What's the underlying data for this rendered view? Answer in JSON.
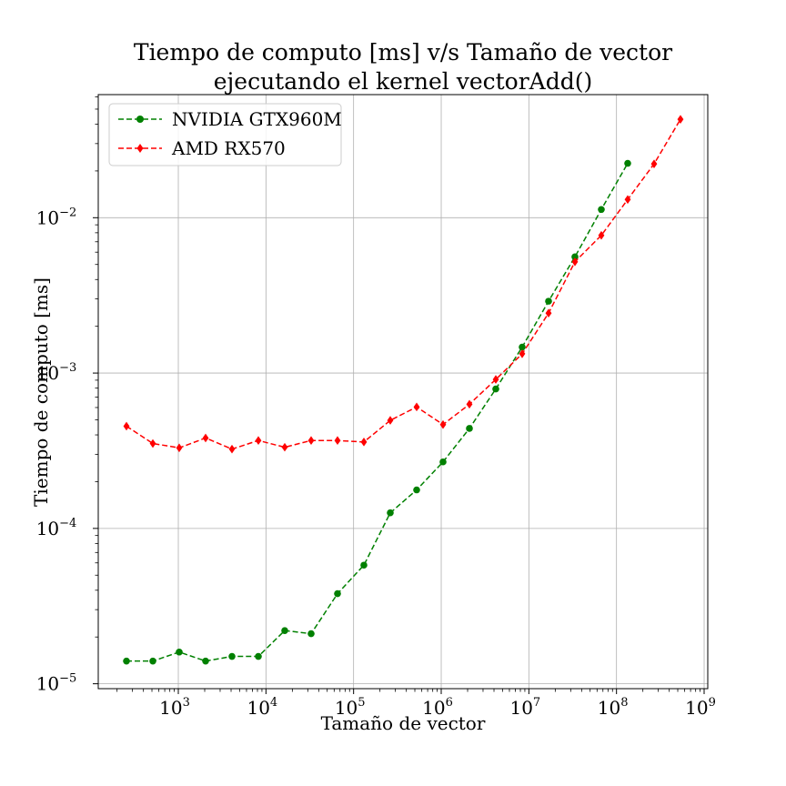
{
  "chart_data": {
    "type": "line",
    "title_line1": "Tiempo de computo [ms] v/s Tamaño de vector",
    "title_line2": "ejecutando el kernel vectorAdd()",
    "xlabel": "Tamaño de vector",
    "ylabel": "Tiempo de computo [ms]",
    "xscale": "log",
    "yscale": "log",
    "xlim": [
      122,
      1100000000
    ],
    "ylim": [
      9.3e-06,
      0.062
    ],
    "grid": true,
    "legend_position": "top-left",
    "x_ticks": [
      {
        "value": 1000,
        "base": "10",
        "exp": "3"
      },
      {
        "value": 10000,
        "base": "10",
        "exp": "4"
      },
      {
        "value": 100000,
        "base": "10",
        "exp": "5"
      },
      {
        "value": 1000000,
        "base": "10",
        "exp": "6"
      },
      {
        "value": 10000000,
        "base": "10",
        "exp": "7"
      },
      {
        "value": 100000000,
        "base": "10",
        "exp": "8"
      },
      {
        "value": 1000000000,
        "base": "10",
        "exp": "9"
      }
    ],
    "y_ticks": [
      {
        "value": 1e-05,
        "base": "10",
        "exp": "−5"
      },
      {
        "value": 0.0001,
        "base": "10",
        "exp": "−4"
      },
      {
        "value": 0.001,
        "base": "10",
        "exp": "−3"
      },
      {
        "value": 0.01,
        "base": "10",
        "exp": "−2"
      }
    ],
    "series": [
      {
        "name": "NVIDIA GTX960M",
        "color": "#008000",
        "marker": "circle",
        "line_style": "dashed",
        "x": [
          256,
          512,
          1024,
          2048,
          4096,
          8192,
          16384,
          32768,
          65536,
          131072,
          262144,
          524288,
          1048576,
          2097152,
          4194304,
          8388608,
          16777216,
          33554432,
          67108864,
          134217728
        ],
        "y": [
          1.4e-05,
          1.4e-05,
          1.6e-05,
          1.4e-05,
          1.5e-05,
          1.5e-05,
          2.2e-05,
          2.1e-05,
          3.8e-05,
          5.8e-05,
          0.000126,
          0.000177,
          0.000268,
          0.00044,
          0.00079,
          0.00147,
          0.0029,
          0.0056,
          0.0113,
          0.0224
        ]
      },
      {
        "name": "AMD RX570",
        "color": "#ff0000",
        "marker": "diamond",
        "line_style": "dashed",
        "x": [
          256,
          512,
          1024,
          2048,
          4096,
          8192,
          16384,
          32768,
          65536,
          131072,
          262144,
          524288,
          1048576,
          2097152,
          4194304,
          8388608,
          16777216,
          33554432,
          67108864,
          134217728,
          268435456,
          536870912
        ],
        "y": [
          0.000455,
          0.000352,
          0.00033,
          0.000382,
          0.000324,
          0.000368,
          0.000333,
          0.000368,
          0.000368,
          0.00036,
          0.000496,
          0.000605,
          0.000466,
          0.00063,
          0.00091,
          0.00133,
          0.00243,
          0.0052,
          0.0077,
          0.0131,
          0.0222,
          0.043
        ]
      }
    ]
  }
}
